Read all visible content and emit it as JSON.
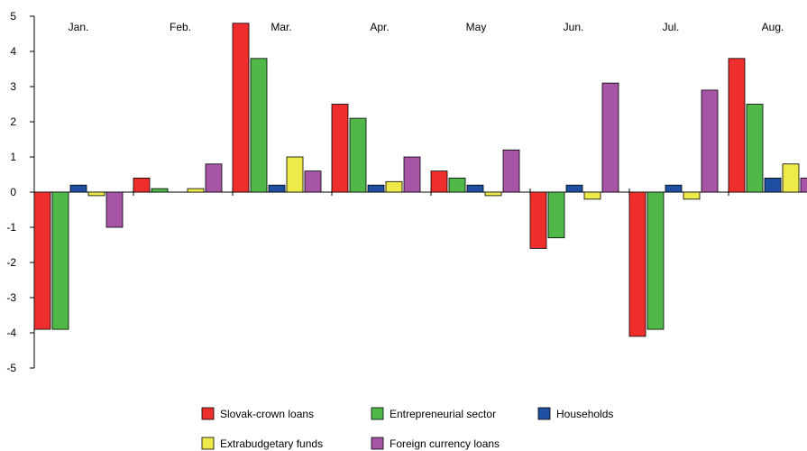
{
  "chart_data": {
    "type": "bar",
    "categories": [
      "Jan.",
      "Feb.",
      "Mar.",
      "Apr.",
      "May",
      "Jun.",
      "Jul.",
      "Aug."
    ],
    "ylim": [
      -5,
      5
    ],
    "yticks": [
      5,
      4,
      3,
      2,
      1,
      0,
      -1,
      -2,
      -3,
      -4,
      -5
    ],
    "grid": false,
    "legend_position": "bottom",
    "series": [
      {
        "name": "Slovak-crown loans",
        "color": "#ee2d2d",
        "values": [
          -3.9,
          0.4,
          4.8,
          2.5,
          0.6,
          -1.6,
          -4.1,
          3.8
        ]
      },
      {
        "name": "Entrepreneurial sector",
        "color": "#4fb848",
        "values": [
          -3.9,
          0.1,
          3.8,
          2.1,
          0.4,
          -1.3,
          -3.9,
          2.5
        ]
      },
      {
        "name": "Households",
        "color": "#1f4fa0",
        "values": [
          0.2,
          0.0,
          0.2,
          0.2,
          0.2,
          0.2,
          0.2,
          0.4
        ]
      },
      {
        "name": "Extrabudgetary funds",
        "color": "#eeea4a",
        "values": [
          -0.1,
          0.1,
          1.0,
          0.3,
          -0.1,
          -0.2,
          -0.2,
          0.8
        ]
      },
      {
        "name": "Foreign currency loans",
        "color": "#a655a6",
        "values": [
          -1.0,
          0.8,
          0.6,
          1.0,
          1.2,
          3.1,
          2.9,
          0.4
        ]
      }
    ]
  }
}
